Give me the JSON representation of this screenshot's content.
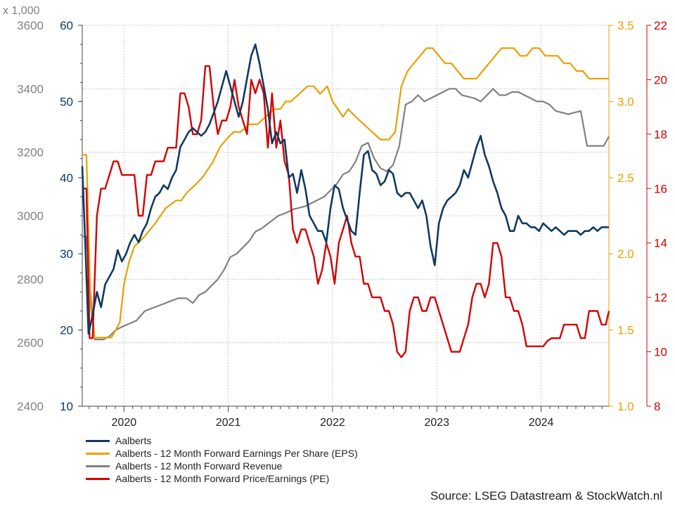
{
  "chart_data": {
    "type": "line",
    "multiplier_label": "x 1,000",
    "x_tick_labels": [
      "2020",
      "2021",
      "2022",
      "2023",
      "2024"
    ],
    "xlim": [
      2019.6,
      2024.65
    ],
    "grid": true,
    "legend_position": "bottom-left",
    "axes": [
      {
        "id": "rev",
        "side": "left-outer",
        "color": "#808080",
        "ylim": [
          2400,
          3600
        ],
        "ticks": [
          "2400",
          "2600",
          "2800",
          "3000",
          "3200",
          "3400",
          "3600"
        ]
      },
      {
        "id": "price",
        "side": "left-inner",
        "color": "#0e3a62",
        "ylim": [
          10,
          60
        ],
        "ticks": [
          "10",
          "20",
          "30",
          "40",
          "50",
          "60"
        ]
      },
      {
        "id": "eps",
        "side": "right-inner",
        "color": "#e8a000",
        "ylim": [
          1.0,
          3.5
        ],
        "ticks": [
          "1.0",
          "1.5",
          "2.0",
          "2.5",
          "3.0",
          "3.5"
        ]
      },
      {
        "id": "pe",
        "side": "right-outer",
        "color": "#d40000",
        "ylim": [
          8,
          22
        ],
        "ticks": [
          "8",
          "10",
          "12",
          "14",
          "16",
          "18",
          "20",
          "22"
        ]
      }
    ],
    "series": [
      {
        "name": "Aalberts",
        "axis": "price",
        "color": "#0e3a62",
        "width": 2.6,
        "x": [
          2019.6,
          2019.63,
          2019.66,
          2019.7,
          2019.74,
          2019.78,
          2019.82,
          2019.86,
          2019.9,
          2019.94,
          2019.98,
          2020.02,
          2020.06,
          2020.1,
          2020.14,
          2020.18,
          2020.22,
          2020.26,
          2020.3,
          2020.34,
          2020.38,
          2020.42,
          2020.46,
          2020.5,
          2020.54,
          2020.58,
          2020.62,
          2020.66,
          2020.7,
          2020.74,
          2020.78,
          2020.82,
          2020.86,
          2020.9,
          2020.94,
          2020.98,
          2021.02,
          2021.06,
          2021.1,
          2021.14,
          2021.18,
          2021.22,
          2021.26,
          2021.3,
          2021.34,
          2021.38,
          2021.42,
          2021.46,
          2021.5,
          2021.54,
          2021.58,
          2021.62,
          2021.66,
          2021.7,
          2021.74,
          2021.78,
          2021.82,
          2021.86,
          2021.9,
          2021.94,
          2021.98,
          2022.02,
          2022.06,
          2022.1,
          2022.14,
          2022.18,
          2022.22,
          2022.26,
          2022.3,
          2022.34,
          2022.38,
          2022.42,
          2022.46,
          2022.5,
          2022.54,
          2022.58,
          2022.62,
          2022.66,
          2022.7,
          2022.74,
          2022.78,
          2022.82,
          2022.86,
          2022.9,
          2022.94,
          2022.98,
          2023.02,
          2023.06,
          2023.1,
          2023.14,
          2023.18,
          2023.22,
          2023.26,
          2023.3,
          2023.34,
          2023.38,
          2023.42,
          2023.46,
          2023.5,
          2023.54,
          2023.58,
          2023.62,
          2023.66,
          2023.7,
          2023.74,
          2023.78,
          2023.82,
          2023.86,
          2023.9,
          2023.94,
          2023.98,
          2024.02,
          2024.06,
          2024.1,
          2024.14,
          2024.18,
          2024.22,
          2024.26,
          2024.3,
          2024.34,
          2024.38,
          2024.42,
          2024.46,
          2024.5,
          2024.54,
          2024.58,
          2024.62,
          2024.65
        ],
        "values": [
          41.5,
          31,
          19.5,
          22,
          25,
          23,
          26,
          27,
          28,
          30.5,
          29,
          30,
          31.5,
          32.5,
          31.5,
          33,
          34,
          36,
          37.5,
          38,
          39,
          38.5,
          40,
          41,
          44,
          45,
          46,
          46.5,
          46,
          45.5,
          46,
          47,
          48.5,
          50,
          52,
          54,
          52,
          50,
          48,
          50,
          53,
          56,
          57.5,
          55,
          52,
          49,
          44.5,
          46,
          44.5,
          45,
          40,
          40.5,
          38,
          41,
          38.5,
          35,
          34,
          33,
          33,
          31.5,
          36,
          39,
          38.5,
          36,
          34.5,
          33,
          32.5,
          38,
          43,
          43.5,
          41,
          40.5,
          39,
          39.5,
          41,
          40.5,
          38,
          37.5,
          38,
          38,
          37,
          36,
          37,
          35,
          31,
          28.5,
          34,
          36,
          37,
          37.5,
          38,
          39,
          41,
          40,
          42,
          44,
          45.5,
          43,
          41.5,
          39.5,
          38,
          36,
          35,
          33,
          33,
          35,
          34,
          34,
          33.5,
          33.5,
          33,
          34,
          33.5,
          33,
          33.5,
          33,
          32.5,
          33,
          33,
          33,
          32.5,
          33,
          33,
          33.5,
          33,
          33.5,
          33.5,
          33.5
        ]
      },
      {
        "name": "Aalberts - 12 Month Forward Earnings Per Share (EPS)",
        "axis": "eps",
        "color": "#e8a000",
        "width": 2.2,
        "x": [
          2019.6,
          2019.64,
          2019.68,
          2019.72,
          2019.76,
          2019.8,
          2019.88,
          2019.92,
          2019.96,
          2020.0,
          2020.05,
          2020.1,
          2020.18,
          2020.24,
          2020.3,
          2020.35,
          2020.4,
          2020.5,
          2020.55,
          2020.6,
          2020.68,
          2020.75,
          2020.8,
          2020.85,
          2020.92,
          2020.98,
          2021.05,
          2021.12,
          2021.2,
          2021.28,
          2021.36,
          2021.44,
          2021.5,
          2021.55,
          2021.6,
          2021.68,
          2021.76,
          2021.82,
          2021.88,
          2021.95,
          2022.0,
          2022.05,
          2022.1,
          2022.15,
          2022.22,
          2022.3,
          2022.38,
          2022.46,
          2022.54,
          2022.6,
          2022.66,
          2022.72,
          2022.78,
          2022.84,
          2022.9,
          2022.96,
          2023.02,
          2023.08,
          2023.14,
          2023.2,
          2023.26,
          2023.32,
          2023.38,
          2023.44,
          2023.5,
          2023.56,
          2023.62,
          2023.68,
          2023.74,
          2023.8,
          2023.86,
          2023.92,
          2023.98,
          2024.04,
          2024.1,
          2024.16,
          2024.22,
          2024.28,
          2024.34,
          2024.4,
          2024.46,
          2024.52,
          2024.58,
          2024.65
        ],
        "values": [
          2.65,
          2.65,
          1.65,
          1.45,
          1.45,
          1.45,
          1.45,
          1.5,
          1.55,
          1.8,
          1.95,
          2.05,
          2.1,
          2.15,
          2.2,
          2.25,
          2.3,
          2.35,
          2.35,
          2.4,
          2.45,
          2.5,
          2.55,
          2.6,
          2.7,
          2.75,
          2.8,
          2.8,
          2.85,
          2.85,
          2.9,
          2.95,
          2.95,
          3.0,
          3.0,
          3.05,
          3.1,
          3.1,
          3.05,
          3.1,
          3.0,
          2.95,
          2.9,
          2.95,
          2.9,
          2.85,
          2.8,
          2.75,
          2.75,
          2.8,
          3.1,
          3.2,
          3.25,
          3.3,
          3.35,
          3.35,
          3.3,
          3.25,
          3.25,
          3.2,
          3.15,
          3.15,
          3.15,
          3.2,
          3.25,
          3.3,
          3.35,
          3.35,
          3.35,
          3.3,
          3.3,
          3.35,
          3.35,
          3.3,
          3.3,
          3.3,
          3.25,
          3.25,
          3.2,
          3.2,
          3.15,
          3.15,
          3.15,
          3.15
        ]
      },
      {
        "name": "Aalberts - 12 Month Forward Revenue",
        "axis": "rev",
        "color": "#808080",
        "width": 2.2,
        "x": [
          2019.6,
          2019.64,
          2019.68,
          2019.72,
          2019.76,
          2019.8,
          2019.86,
          2019.92,
          2019.98,
          2020.05,
          2020.12,
          2020.2,
          2020.28,
          2020.36,
          2020.44,
          2020.52,
          2020.6,
          2020.66,
          2020.72,
          2020.78,
          2020.84,
          2020.9,
          2020.96,
          2021.02,
          2021.08,
          2021.14,
          2021.2,
          2021.26,
          2021.32,
          2021.4,
          2021.48,
          2021.56,
          2021.62,
          2021.68,
          2021.74,
          2021.8,
          2021.86,
          2021.92,
          2021.98,
          2022.04,
          2022.1,
          2022.16,
          2022.22,
          2022.28,
          2022.34,
          2022.4,
          2022.46,
          2022.52,
          2022.58,
          2022.64,
          2022.7,
          2022.76,
          2022.82,
          2022.88,
          2022.94,
          2023.0,
          2023.06,
          2023.12,
          2023.18,
          2023.24,
          2023.3,
          2023.36,
          2023.42,
          2023.48,
          2023.54,
          2023.6,
          2023.66,
          2023.72,
          2023.78,
          2023.84,
          2023.9,
          2023.96,
          2024.02,
          2024.08,
          2024.14,
          2024.2,
          2024.26,
          2024.32,
          2024.38,
          2024.44,
          2024.5,
          2024.56,
          2024.6,
          2024.65
        ],
        "values": [
          2935,
          2935,
          2750,
          2610,
          2610,
          2610,
          2620,
          2640,
          2650,
          2660,
          2670,
          2700,
          2710,
          2720,
          2730,
          2740,
          2740,
          2725,
          2750,
          2760,
          2780,
          2800,
          2830,
          2870,
          2880,
          2900,
          2920,
          2950,
          2960,
          2980,
          3000,
          3010,
          3020,
          3025,
          3030,
          3040,
          3050,
          3060,
          3080,
          3100,
          3130,
          3140,
          3170,
          3220,
          3230,
          3180,
          3150,
          3140,
          3160,
          3220,
          3350,
          3360,
          3380,
          3360,
          3370,
          3380,
          3390,
          3400,
          3400,
          3380,
          3375,
          3370,
          3360,
          3380,
          3400,
          3380,
          3380,
          3390,
          3390,
          3380,
          3370,
          3360,
          3360,
          3350,
          3330,
          3325,
          3320,
          3325,
          3330,
          3220,
          3220,
          3220,
          3220,
          3250
        ]
      },
      {
        "name": "Aalberts - 12 Month Forward Price/Earnings (PE)",
        "axis": "pe",
        "color": "#d40000",
        "width": 2.4,
        "x": [
          2019.6,
          2019.64,
          2019.67,
          2019.7,
          2019.74,
          2019.78,
          2019.82,
          2019.86,
          2019.9,
          2019.94,
          2019.98,
          2020.02,
          2020.06,
          2020.1,
          2020.14,
          2020.18,
          2020.22,
          2020.26,
          2020.3,
          2020.34,
          2020.38,
          2020.42,
          2020.46,
          2020.5,
          2020.54,
          2020.58,
          2020.62,
          2020.66,
          2020.7,
          2020.74,
          2020.78,
          2020.82,
          2020.86,
          2020.9,
          2020.94,
          2020.98,
          2021.02,
          2021.06,
          2021.1,
          2021.14,
          2021.18,
          2021.22,
          2021.26,
          2021.3,
          2021.34,
          2021.38,
          2021.42,
          2021.46,
          2021.5,
          2021.54,
          2021.58,
          2021.62,
          2021.66,
          2021.7,
          2021.74,
          2021.78,
          2021.82,
          2021.86,
          2021.9,
          2021.94,
          2021.98,
          2022.02,
          2022.06,
          2022.1,
          2022.14,
          2022.18,
          2022.22,
          2022.26,
          2022.3,
          2022.34,
          2022.38,
          2022.42,
          2022.46,
          2022.5,
          2022.54,
          2022.58,
          2022.62,
          2022.66,
          2022.7,
          2022.74,
          2022.78,
          2022.82,
          2022.86,
          2022.9,
          2022.94,
          2022.98,
          2023.02,
          2023.06,
          2023.1,
          2023.14,
          2023.18,
          2023.22,
          2023.26,
          2023.3,
          2023.34,
          2023.38,
          2023.42,
          2023.46,
          2023.5,
          2023.54,
          2023.58,
          2023.62,
          2023.66,
          2023.7,
          2023.74,
          2023.78,
          2023.82,
          2023.86,
          2023.9,
          2023.94,
          2023.98,
          2024.02,
          2024.06,
          2024.1,
          2024.14,
          2024.18,
          2024.22,
          2024.26,
          2024.3,
          2024.34,
          2024.38,
          2024.42,
          2024.46,
          2024.5,
          2024.54,
          2024.58,
          2024.62,
          2024.65
        ],
        "values": [
          16,
          16,
          10.5,
          10.5,
          15,
          16,
          16,
          16.5,
          17,
          17,
          16.5,
          16.5,
          16.5,
          16.5,
          15,
          15,
          16.5,
          16.5,
          17,
          17,
          17,
          17.5,
          17.5,
          17.5,
          19.5,
          19.5,
          19,
          18,
          18,
          18.5,
          20.5,
          20.5,
          19,
          18,
          18.5,
          18.5,
          19,
          20,
          19,
          18.5,
          18,
          20,
          19.5,
          20,
          19.5,
          17.5,
          19.5,
          17.5,
          18.5,
          17,
          16.5,
          14.5,
          14,
          14.5,
          14.5,
          14,
          13.5,
          12.5,
          13,
          14,
          13.5,
          12.5,
          14,
          14.5,
          15,
          14,
          13.5,
          13.5,
          12.5,
          12.5,
          12,
          12,
          12,
          11.5,
          11.5,
          11,
          10,
          9.8,
          10,
          11.5,
          12,
          12,
          11.5,
          11.5,
          12,
          12,
          11.5,
          11,
          10.5,
          10,
          10,
          10,
          10.5,
          11,
          12,
          12.5,
          12.5,
          12,
          12.5,
          14,
          14,
          13.5,
          12,
          12,
          11.5,
          11.5,
          11,
          10.2,
          10.2,
          10.2,
          10.2,
          10.2,
          10.4,
          10.5,
          10.5,
          10.5,
          11,
          11,
          11,
          11,
          10.5,
          10.5,
          11.5,
          11.5,
          11.5,
          11,
          11,
          11.5
        ]
      }
    ]
  },
  "legend_items": [
    {
      "label": "Aalberts",
      "color": "#0e3a62"
    },
    {
      "label": "Aalberts - 12 Month Forward Earnings Per Share (EPS)",
      "color": "#e8a000"
    },
    {
      "label": "Aalberts - 12 Month Forward Revenue",
      "color": "#808080"
    },
    {
      "label": "Aalberts - 12 Month Forward Price/Earnings (PE)",
      "color": "#d40000"
    }
  ],
  "source": "Source: LSEG Datastream & StockWatch.nl"
}
